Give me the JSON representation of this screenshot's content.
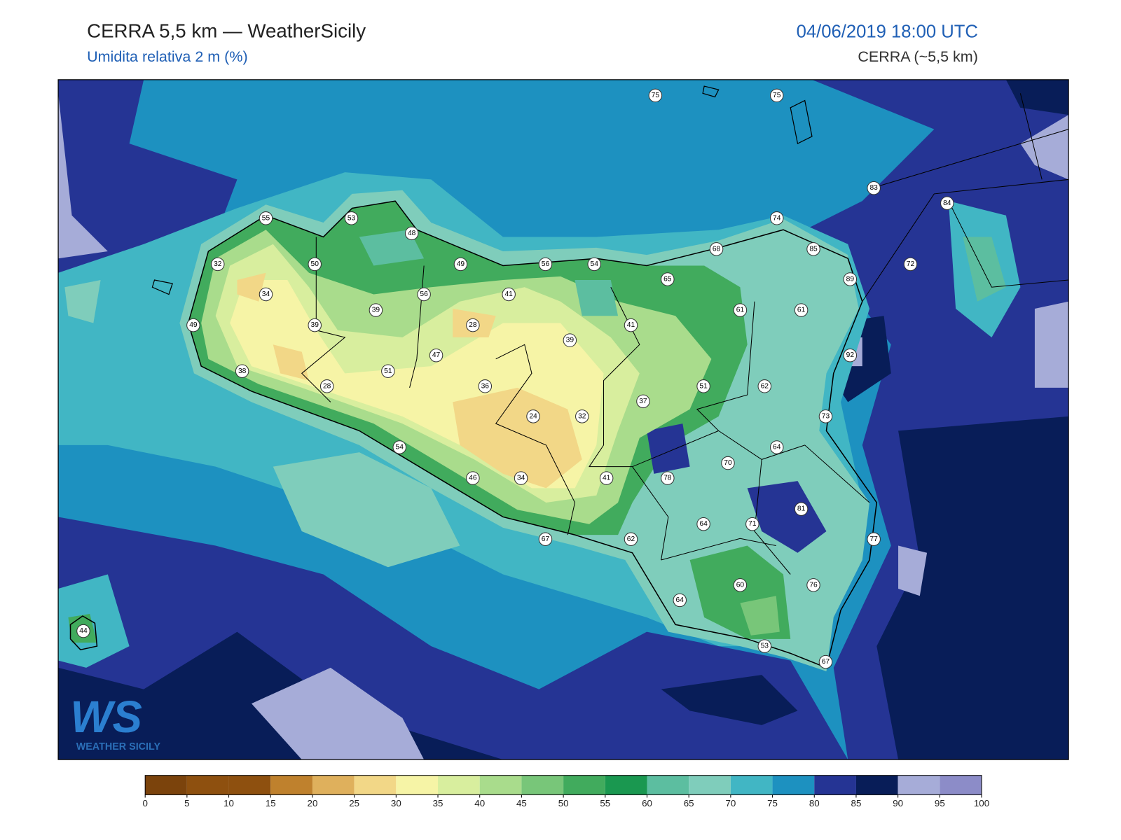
{
  "header": {
    "title": "CERRA 5,5 km — WeatherSicily",
    "subtitle": "Umidita relativa 2 m (%)",
    "datetime": "04/06/2019 18:00 UTC",
    "model": "CERRA (~5,5 km)"
  },
  "stations": {
    "values": [
      75,
      75,
      83,
      84,
      55,
      53,
      74,
      48,
      68,
      85,
      32,
      50,
      49,
      56,
      54,
      65,
      72,
      89,
      34,
      56,
      41,
      39,
      61,
      61,
      49,
      39,
      28,
      41,
      39,
      92,
      47,
      38,
      51,
      28,
      36,
      51,
      62,
      37,
      24,
      32,
      73,
      54,
      64,
      70,
      46,
      34,
      41,
      78,
      81,
      64,
      71,
      77,
      67,
      62,
      60,
      76,
      64,
      44,
      53,
      67
    ]
  },
  "colorbar": {
    "ticks": [
      0,
      5,
      10,
      15,
      20,
      25,
      30,
      35,
      40,
      45,
      50,
      55,
      60,
      65,
      70,
      75,
      80,
      85,
      90,
      95,
      100
    ],
    "colors": [
      "#7b430c",
      "#8e500f",
      "#8e500f",
      "#bf812d",
      "#dfb05c",
      "#f2d787",
      "#f6f4a6",
      "#d8ee9e",
      "#a9dc8c",
      "#78c679",
      "#41ab5d",
      "#1a9850",
      "#5cbea0",
      "#7fcdbb",
      "#41b6c4",
      "#1d91c0",
      "#253494",
      "#081d58",
      "#a6acd8",
      "#8c8cc8"
    ]
  },
  "logo": {
    "mark": "WS",
    "text": "WEATHER SICILY"
  }
}
